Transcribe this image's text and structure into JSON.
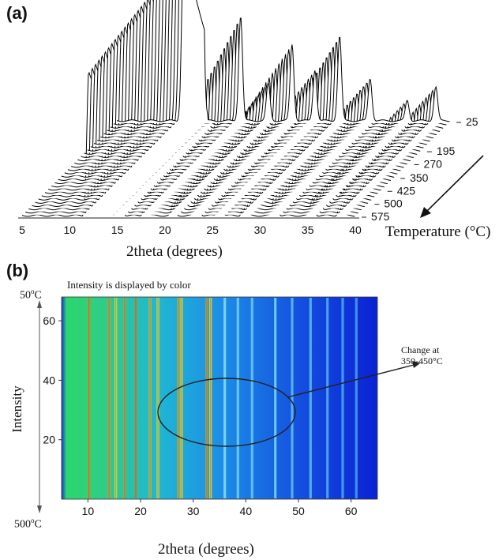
{
  "chart_data": [
    {
      "panel_label": "(a)",
      "type": "line",
      "subtype": "waterfall-3d",
      "xlabel": "2theta (degrees)",
      "x_ticks": [
        "5",
        "10",
        "15",
        "20",
        "25",
        "30",
        "35",
        "40"
      ],
      "xlim": [
        5,
        40
      ],
      "zlabel": "Temperature (°C)",
      "z_ticks": [
        "25",
        "195",
        "270",
        "350",
        "425",
        "500",
        "575"
      ],
      "zlim": [
        25,
        575
      ],
      "series_count": 30,
      "peaks": [
        {
          "x": 12.0,
          "height_low_T": 1.0,
          "height_high_T": 0.88
        },
        {
          "x": 15.3,
          "height_low_T": 0.0,
          "height_high_T": 0.25
        },
        {
          "x": 18.0,
          "height_low_T": 0.62,
          "height_high_T": 0.12
        },
        {
          "x": 20.9,
          "height_low_T": 0.22,
          "height_high_T": 0.07
        },
        {
          "x": 23.4,
          "height_low_T": 0.45,
          "height_high_T": 0.2
        },
        {
          "x": 25.8,
          "height_low_T": 0.3,
          "height_high_T": 0.15
        },
        {
          "x": 28.4,
          "height_low_T": 0.5,
          "height_high_T": 0.18
        },
        {
          "x": 31.6,
          "height_low_T": 0.25,
          "height_high_T": 0.18
        },
        {
          "x": 35.5,
          "height_low_T": 0.12,
          "height_high_T": 0.1
        },
        {
          "x": 38.5,
          "height_low_T": 0.2,
          "height_high_T": 0.14
        }
      ]
    },
    {
      "panel_label": "(b)",
      "type": "heatmap",
      "annotation_top": "Intensity is displayed by color",
      "xlabel": "2theta (degrees)",
      "x_ticks": [
        "10",
        "20",
        "30",
        "40",
        "50",
        "60"
      ],
      "xlim": [
        5,
        65
      ],
      "ylabel": "Intensity",
      "y_ticks": [
        "60",
        "40",
        "20"
      ],
      "ylim": [
        0,
        68
      ],
      "y_top_label_base": "50",
      "y_bottom_label_base": "500",
      "temp_unit_sup": "o",
      "temp_unit": "C",
      "callout": "Change at 350-450°C",
      "callout_line1": "Change at",
      "callout_line2": "350-450°C",
      "colors": {
        "low": "#0a2ad8",
        "mid": "#1a9ee8",
        "high": "#27e07a",
        "peak": "#d9e63a",
        "edge": "#1233e0"
      },
      "lines": [
        {
          "x": 10.2,
          "color": "#c89a2a"
        },
        {
          "x": 14.0,
          "color": "#d0a62c"
        },
        {
          "x": 15.3,
          "color": "#e6e23a"
        },
        {
          "x": 17.0,
          "color": "#c8a030"
        },
        {
          "x": 19.1,
          "color": "#b89038"
        },
        {
          "x": 21.8,
          "color": "#d4c034"
        },
        {
          "x": 23.3,
          "color": "#e6e63c"
        },
        {
          "x": 27.2,
          "color": "#c8b83a"
        },
        {
          "x": 27.8,
          "color": "#e0e040"
        },
        {
          "x": 32.6,
          "color": "#c8a63a"
        },
        {
          "x": 33.3,
          "color": "#e8e23c"
        },
        {
          "x": 36.0,
          "color": "#7fd8f0"
        },
        {
          "x": 38.5,
          "color": "#6ccbee"
        },
        {
          "x": 41.2,
          "color": "#66c2ee"
        },
        {
          "x": 45.6,
          "color": "#6fd0f2"
        },
        {
          "x": 48.8,
          "color": "#5cb8ee"
        },
        {
          "x": 52.3,
          "color": "#5ab4ec"
        },
        {
          "x": 55.5,
          "color": "#4fa8ea"
        },
        {
          "x": 58.4,
          "color": "#4aa2ea"
        },
        {
          "x": 61.0,
          "color": "#4599e8"
        }
      ]
    }
  ]
}
